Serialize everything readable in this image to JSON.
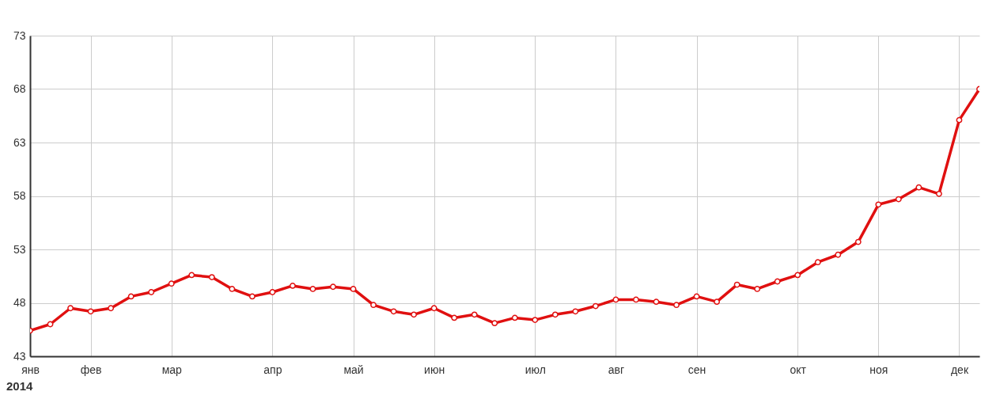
{
  "chart_data": {
    "type": "line",
    "categories": [
      "янв",
      null,
      null,
      "фев",
      null,
      null,
      null,
      "мар",
      null,
      null,
      null,
      null,
      "апр",
      null,
      null,
      null,
      "май",
      null,
      null,
      null,
      "июн",
      null,
      null,
      null,
      null,
      "июл",
      null,
      null,
      null,
      "авг",
      null,
      null,
      null,
      "сен",
      null,
      null,
      null,
      null,
      "окт",
      null,
      null,
      null,
      "ноя",
      null,
      null,
      null,
      "дек",
      null
    ],
    "series": [
      {
        "color": "#e01010",
        "values": [
          45.4,
          46.0,
          47.5,
          47.2,
          47.5,
          48.6,
          49.0,
          49.8,
          50.6,
          50.4,
          49.3,
          48.6,
          49.0,
          49.6,
          49.3,
          49.5,
          49.3,
          47.8,
          47.2,
          46.9,
          47.5,
          46.6,
          46.9,
          46.1,
          46.6,
          46.4,
          46.9,
          47.2,
          47.7,
          48.3,
          48.3,
          48.1,
          47.8,
          48.6,
          48.1,
          49.7,
          49.3,
          50.0,
          50.6,
          51.8,
          52.5,
          53.7,
          57.2,
          57.7,
          58.8,
          58.2,
          65.1,
          68.0
        ]
      }
    ],
    "ylim": [
      43,
      73
    ],
    "yticks": [
      43,
      48,
      53,
      58,
      63,
      68,
      73
    ],
    "annotations": [
      "2014"
    ],
    "grid": true,
    "marker": "circle",
    "line_style": "solid"
  }
}
